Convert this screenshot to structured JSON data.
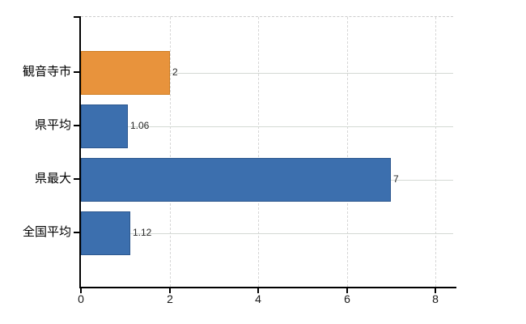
{
  "chart_data": {
    "type": "bar",
    "orientation": "horizontal",
    "title": "",
    "xlabel": "",
    "ylabel": "",
    "categories": [
      "観音寺市",
      "県平均",
      "県最大",
      "全国平均"
    ],
    "values": [
      2,
      1.06,
      7,
      1.12
    ],
    "display_values": [
      "2",
      "1.06",
      "7",
      "1.12"
    ],
    "bar_colors": [
      "#e8933c",
      "#3c6fae",
      "#3c6fae",
      "#3c6fae"
    ],
    "bar_border_colors": [
      "#cf7b1e",
      "#2c578e",
      "#2c578e",
      "#2c578e"
    ],
    "xlim": [
      0,
      8.4
    ],
    "xticks": [
      0,
      2,
      4,
      6,
      8
    ],
    "xtick_labels": [
      "0",
      "2",
      "4",
      "6",
      "8"
    ],
    "grid": "on",
    "legend_position": "none",
    "colors": {
      "highlight_bar": "#e8933c",
      "default_bar": "#3c6fae",
      "grid_vertical": "#d6d6d6",
      "grid_horizontal": "#d4d9d4",
      "axis": "#000000",
      "tick_text": "#1a1a1a",
      "value_text": "#2a2a2a"
    }
  }
}
